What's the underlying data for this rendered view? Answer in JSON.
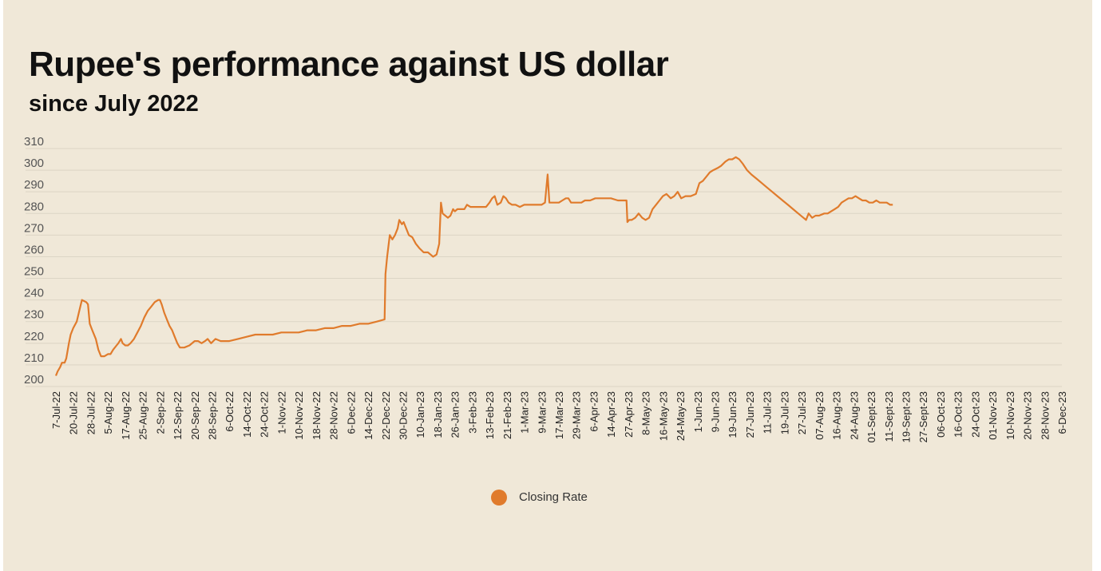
{
  "header": {
    "title": "Rupee's performance against US dollar",
    "subtitle": "since July 2022"
  },
  "chart_data": {
    "type": "line",
    "title": "Rupee's performance against US dollar",
    "subtitle": "since July 2022",
    "xlabel": "",
    "ylabel": "",
    "ylim": [
      200,
      310
    ],
    "yticks": [
      200,
      210,
      220,
      230,
      240,
      250,
      260,
      270,
      280,
      290,
      300,
      310
    ],
    "grid": true,
    "legend": "bottom-center",
    "colors": {
      "line": "#e07b2c",
      "grid": "#dcd5c5",
      "background": "#f0e8d8"
    },
    "categories": [
      "7-Jul-22",
      "20-Jul-22",
      "28-Jul-22",
      "5-Aug-22",
      "17-Aug-22",
      "25-Aug-22",
      "2-Sep-22",
      "12-Sep-22",
      "20-Sep-22",
      "28-Sep-22",
      "6-Oct-22",
      "14-Oct-22",
      "24-Oct-22",
      "1-Nov-22",
      "10-Nov-22",
      "18-Nov-22",
      "28-Nov-22",
      "6-Dec-22",
      "14-Dec-22",
      "22-Dec-22",
      "30-Dec-22",
      "10-Jan-23",
      "18-Jan-23",
      "26-Jan-23",
      "3-Feb-23",
      "13-Feb-23",
      "21-Feb-23",
      "1-Mar-23",
      "9-Mar-23",
      "17-Mar-23",
      "29-Mar-23",
      "6-Apr-23",
      "14-Apr-23",
      "27-Apr-23",
      "8-May-23",
      "16-May-23",
      "24-May-23",
      "1-Jun-23",
      "9-Jun-23",
      "19-Jun-23",
      "27-Jun-23",
      "11-Jul-23",
      "19-Jul-23",
      "27-Jul-23",
      "07-Aug-23",
      "16-Aug-23",
      "24-Aug-23",
      "01-Sept-23",
      "11-Sept-23",
      "19-Sept-23",
      "27-Sept-23",
      "06-Oct-23",
      "16-Oct-23",
      "24-Oct-23",
      "01-Nov-23",
      "10-Nov-23",
      "20-Nov-23",
      "28-Nov-23",
      "6-Dec-23"
    ],
    "series": [
      {
        "name": "Closing Rate",
        "values": [
          [
            0,
            205
          ],
          [
            0.1,
            207
          ],
          [
            0.25,
            209
          ],
          [
            0.35,
            211
          ],
          [
            0.5,
            211
          ],
          [
            0.6,
            213
          ],
          [
            0.75,
            220
          ],
          [
            0.85,
            224
          ],
          [
            1.0,
            227
          ],
          [
            1.2,
            230
          ],
          [
            1.35,
            235
          ],
          [
            1.5,
            240
          ],
          [
            1.75,
            239
          ],
          [
            1.85,
            238
          ],
          [
            1.95,
            229
          ],
          [
            2.1,
            226
          ],
          [
            2.3,
            222
          ],
          [
            2.45,
            217
          ],
          [
            2.6,
            214
          ],
          [
            2.8,
            214
          ],
          [
            3.0,
            215
          ],
          [
            3.15,
            215
          ],
          [
            3.3,
            217
          ],
          [
            3.5,
            219
          ],
          [
            3.6,
            220
          ],
          [
            3.75,
            222
          ],
          [
            3.85,
            220
          ],
          [
            4.0,
            219
          ],
          [
            4.15,
            219
          ],
          [
            4.3,
            220
          ],
          [
            4.5,
            222
          ],
          [
            4.7,
            225
          ],
          [
            4.9,
            228
          ],
          [
            5.1,
            232
          ],
          [
            5.3,
            235
          ],
          [
            5.5,
            237
          ],
          [
            5.7,
            239
          ],
          [
            5.9,
            240
          ],
          [
            6.0,
            240
          ],
          [
            6.1,
            238
          ],
          [
            6.25,
            234
          ],
          [
            6.4,
            231
          ],
          [
            6.55,
            228
          ],
          [
            6.7,
            226
          ],
          [
            6.85,
            223
          ],
          [
            7.0,
            220
          ],
          [
            7.15,
            218
          ],
          [
            7.4,
            218
          ],
          [
            7.7,
            219
          ],
          [
            8.0,
            221
          ],
          [
            8.2,
            221
          ],
          [
            8.4,
            220
          ],
          [
            8.6,
            221
          ],
          [
            8.75,
            222
          ],
          [
            8.95,
            220
          ],
          [
            9.2,
            222
          ],
          [
            9.5,
            221
          ],
          [
            10.0,
            221
          ],
          [
            10.5,
            222
          ],
          [
            11.0,
            223
          ],
          [
            11.5,
            224
          ],
          [
            12.0,
            224
          ],
          [
            12.5,
            224
          ],
          [
            13.0,
            225
          ],
          [
            13.5,
            225
          ],
          [
            14.0,
            225
          ],
          [
            14.5,
            226
          ],
          [
            15.0,
            226
          ],
          [
            15.5,
            227
          ],
          [
            16.0,
            227
          ],
          [
            16.5,
            228
          ],
          [
            17.0,
            228
          ],
          [
            17.5,
            229
          ],
          [
            18.0,
            229
          ],
          [
            18.5,
            230
          ],
          [
            18.95,
            231
          ],
          [
            19.0,
            252
          ],
          [
            19.1,
            260
          ],
          [
            19.25,
            270
          ],
          [
            19.4,
            268
          ],
          [
            19.55,
            270
          ],
          [
            19.7,
            273
          ],
          [
            19.8,
            277
          ],
          [
            19.95,
            275
          ],
          [
            20.05,
            276
          ],
          [
            20.2,
            273
          ],
          [
            20.35,
            270
          ],
          [
            20.55,
            269
          ],
          [
            20.75,
            266
          ],
          [
            20.95,
            264
          ],
          [
            21.2,
            262
          ],
          [
            21.45,
            262
          ],
          [
            21.6,
            261
          ],
          [
            21.75,
            260
          ],
          [
            21.95,
            261
          ],
          [
            22.1,
            266
          ],
          [
            22.2,
            285
          ],
          [
            22.3,
            280
          ],
          [
            22.45,
            279
          ],
          [
            22.6,
            278
          ],
          [
            22.75,
            279
          ],
          [
            22.9,
            282
          ],
          [
            23.0,
            281
          ],
          [
            23.15,
            282
          ],
          [
            23.35,
            282
          ],
          [
            23.55,
            282
          ],
          [
            23.7,
            284
          ],
          [
            23.9,
            283
          ],
          [
            24.2,
            283
          ],
          [
            24.6,
            283
          ],
          [
            24.8,
            283
          ],
          [
            25.0,
            285
          ],
          [
            25.15,
            287
          ],
          [
            25.3,
            288
          ],
          [
            25.45,
            284
          ],
          [
            25.65,
            285
          ],
          [
            25.8,
            288
          ],
          [
            25.95,
            287
          ],
          [
            26.1,
            285
          ],
          [
            26.3,
            284
          ],
          [
            26.5,
            284
          ],
          [
            26.75,
            283
          ],
          [
            27.0,
            284
          ],
          [
            27.3,
            284
          ],
          [
            27.6,
            284
          ],
          [
            27.8,
            284
          ],
          [
            28.0,
            284
          ],
          [
            28.2,
            285
          ],
          [
            28.35,
            298
          ],
          [
            28.45,
            285
          ],
          [
            28.6,
            285
          ],
          [
            28.8,
            285
          ],
          [
            29.0,
            285
          ],
          [
            29.2,
            286
          ],
          [
            29.4,
            287
          ],
          [
            29.55,
            287
          ],
          [
            29.7,
            285
          ],
          [
            29.9,
            285
          ],
          [
            30.1,
            285
          ],
          [
            30.3,
            285
          ],
          [
            30.5,
            286
          ],
          [
            30.8,
            286
          ],
          [
            31.1,
            287
          ],
          [
            31.3,
            287
          ],
          [
            31.5,
            287
          ],
          [
            32.0,
            287
          ],
          [
            32.4,
            286
          ],
          [
            32.7,
            286
          ],
          [
            32.9,
            286
          ],
          [
            32.95,
            276
          ],
          [
            33.05,
            277
          ],
          [
            33.2,
            277
          ],
          [
            33.4,
            278
          ],
          [
            33.6,
            280
          ],
          [
            33.8,
            278
          ],
          [
            34.0,
            277
          ],
          [
            34.2,
            278
          ],
          [
            34.4,
            282
          ],
          [
            34.6,
            284
          ],
          [
            34.8,
            286
          ],
          [
            35.0,
            288
          ],
          [
            35.2,
            289
          ],
          [
            35.45,
            287
          ],
          [
            35.65,
            288
          ],
          [
            35.85,
            290
          ],
          [
            36.05,
            287
          ],
          [
            36.3,
            288
          ],
          [
            36.6,
            288
          ],
          [
            36.9,
            289
          ],
          [
            37.1,
            294
          ],
          [
            37.3,
            295
          ],
          [
            37.5,
            297
          ],
          [
            37.7,
            299
          ],
          [
            37.9,
            300
          ],
          [
            38.15,
            301
          ],
          [
            38.35,
            302
          ],
          [
            38.6,
            304
          ],
          [
            38.8,
            305
          ],
          [
            39.0,
            305
          ],
          [
            39.2,
            306
          ],
          [
            39.4,
            305
          ],
          [
            39.6,
            303
          ],
          [
            39.85,
            300
          ],
          [
            40.1,
            298
          ],
          [
            40.4,
            296
          ],
          [
            40.7,
            294
          ],
          [
            41.0,
            292
          ],
          [
            41.3,
            290
          ],
          [
            41.6,
            288
          ],
          [
            41.9,
            286
          ],
          [
            42.2,
            284
          ],
          [
            42.5,
            282
          ],
          [
            42.8,
            280
          ],
          [
            43.1,
            278
          ],
          [
            43.25,
            277
          ],
          [
            43.4,
            280
          ],
          [
            43.6,
            278
          ],
          [
            43.8,
            279
          ],
          [
            44.0,
            279
          ],
          [
            44.3,
            280
          ],
          [
            44.5,
            280
          ],
          [
            44.7,
            281
          ],
          [
            44.9,
            282
          ],
          [
            45.1,
            283
          ],
          [
            45.3,
            285
          ],
          [
            45.5,
            286
          ],
          [
            45.7,
            287
          ],
          [
            45.9,
            287
          ],
          [
            46.1,
            288
          ],
          [
            46.3,
            287
          ],
          [
            46.5,
            286
          ],
          [
            46.7,
            286
          ],
          [
            46.9,
            285
          ],
          [
            47.1,
            285
          ],
          [
            47.3,
            286
          ],
          [
            47.5,
            285
          ],
          [
            47.7,
            285
          ],
          [
            47.9,
            285
          ],
          [
            48.1,
            284
          ],
          [
            48.25,
            284
          ]
        ]
      }
    ]
  }
}
